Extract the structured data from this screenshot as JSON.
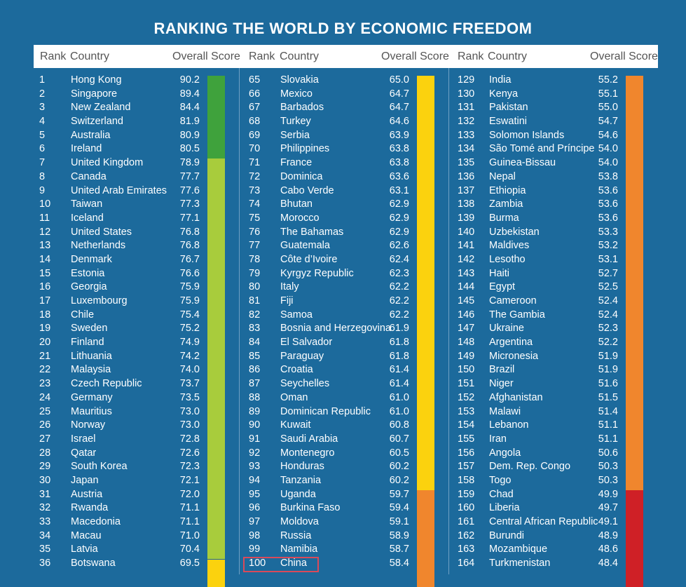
{
  "title": "RANKING THE WORLD BY ECONOMIC FREEDOM",
  "headers": {
    "rank": "Rank",
    "country": "Country",
    "score": "Overall Score"
  },
  "colors": {
    "green": "#3fa23c",
    "lightgreen": "#a8cc3c",
    "yellow": "#fbd20e",
    "orange": "#f0862d",
    "red": "#cf2026"
  },
  "highlight_rank": "100",
  "columns": [
    {
      "rows": [
        [
          "1",
          "Hong Kong",
          "90.2"
        ],
        [
          "2",
          "Singapore",
          "89.4"
        ],
        [
          "3",
          "New Zealand",
          "84.4"
        ],
        [
          "4",
          "Switzerland",
          "81.9"
        ],
        [
          "5",
          "Australia",
          "80.9"
        ],
        [
          "6",
          "Ireland",
          "80.5"
        ],
        [
          "7",
          "United Kingdom",
          "78.9"
        ],
        [
          "8",
          "Canada",
          "77.7"
        ],
        [
          "9",
          "United Arab Emirates",
          "77.6"
        ],
        [
          "10",
          "Taiwan",
          "77.3"
        ],
        [
          "11",
          "Iceland",
          "77.1"
        ],
        [
          "12",
          "United States",
          "76.8"
        ],
        [
          "13",
          "Netherlands",
          "76.8"
        ],
        [
          "14",
          "Denmark",
          "76.7"
        ],
        [
          "15",
          "Estonia",
          "76.6"
        ],
        [
          "16",
          "Georgia",
          "75.9"
        ],
        [
          "17",
          "Luxembourg",
          "75.9"
        ],
        [
          "18",
          "Chile",
          "75.4"
        ],
        [
          "19",
          "Sweden",
          "75.2"
        ],
        [
          "20",
          "Finland",
          "74.9"
        ],
        [
          "21",
          "Lithuania",
          "74.2"
        ],
        [
          "22",
          "Malaysia",
          "74.0"
        ],
        [
          "23",
          "Czech Republic",
          "73.7"
        ],
        [
          "24",
          "Germany",
          "73.5"
        ],
        [
          "25",
          "Mauritius",
          "73.0"
        ],
        [
          "26",
          "Norway",
          "73.0"
        ],
        [
          "27",
          "Israel",
          "72.8"
        ],
        [
          "28",
          "Qatar",
          "72.6"
        ],
        [
          "29",
          "South Korea",
          "72.3"
        ],
        [
          "30",
          "Japan",
          "72.1"
        ],
        [
          "31",
          "Austria",
          "72.0"
        ],
        [
          "32",
          "Rwanda",
          "71.1"
        ],
        [
          "33",
          "Macedonia",
          "71.1"
        ],
        [
          "34",
          "Macau",
          "71.0"
        ],
        [
          "35",
          "Latvia",
          "70.4"
        ],
        [
          "36",
          "Botswana",
          "69.5"
        ]
      ],
      "bands": [
        {
          "color": "green",
          "rows": 6
        },
        {
          "color": "lightgreen",
          "rows": 29
        },
        {
          "color": "yellow",
          "rows": 2
        }
      ]
    },
    {
      "rows": [
        [
          "65",
          "Slovakia",
          "65.0"
        ],
        [
          "66",
          "Mexico",
          "64.7"
        ],
        [
          "67",
          "Barbados",
          "64.7"
        ],
        [
          "68",
          "Turkey",
          "64.6"
        ],
        [
          "69",
          "Serbia",
          "63.9"
        ],
        [
          "70",
          "Philippines",
          "63.8"
        ],
        [
          "71",
          "France",
          "63.8"
        ],
        [
          "72",
          "Dominica",
          "63.6"
        ],
        [
          "73",
          "Cabo Verde",
          "63.1"
        ],
        [
          "74",
          "Bhutan",
          "62.9"
        ],
        [
          "75",
          "Morocco",
          "62.9"
        ],
        [
          "76",
          "The Bahamas",
          "62.9"
        ],
        [
          "77",
          "Guatemala",
          "62.6"
        ],
        [
          "78",
          "Côte d’Ivoire",
          "62.4"
        ],
        [
          "79",
          "Kyrgyz Republic",
          "62.3"
        ],
        [
          "80",
          "Italy",
          "62.2"
        ],
        [
          "81",
          "Fiji",
          "62.2"
        ],
        [
          "82",
          "Samoa",
          "62.2"
        ],
        [
          "83",
          "Bosnia and Herzegovina",
          "61.9"
        ],
        [
          "84",
          "El Salvador",
          "61.8"
        ],
        [
          "85",
          "Paraguay",
          "61.8"
        ],
        [
          "86",
          "Croatia",
          "61.4"
        ],
        [
          "87",
          "Seychelles",
          "61.4"
        ],
        [
          "88",
          "Oman",
          "61.0"
        ],
        [
          "89",
          "Dominican Republic",
          "61.0"
        ],
        [
          "90",
          "Kuwait",
          "60.8"
        ],
        [
          "91",
          "Saudi Arabia",
          "60.7"
        ],
        [
          "92",
          "Montenegro",
          "60.5"
        ],
        [
          "93",
          "Honduras",
          "60.2"
        ],
        [
          "94",
          "Tanzania",
          "60.2"
        ],
        [
          "95",
          "Uganda",
          "59.7"
        ],
        [
          "96",
          "Burkina Faso",
          "59.4"
        ],
        [
          "97",
          "Moldova",
          "59.1"
        ],
        [
          "98",
          "Russia",
          "58.9"
        ],
        [
          "99",
          "Namibia",
          "58.7"
        ],
        [
          "100",
          "China",
          "58.4"
        ]
      ],
      "bands": [
        {
          "color": "yellow",
          "rows": 30
        },
        {
          "color": "orange",
          "rows": 7
        }
      ]
    },
    {
      "rows": [
        [
          "129",
          "India",
          "55.2"
        ],
        [
          "130",
          "Kenya",
          "55.1"
        ],
        [
          "131",
          "Pakistan",
          "55.0"
        ],
        [
          "132",
          "Eswatini",
          "54.7"
        ],
        [
          "133",
          "Solomon Islands",
          "54.6"
        ],
        [
          "134",
          "São Tomé and Príncipe",
          "54.0"
        ],
        [
          "135",
          "Guinea-Bissau",
          "54.0"
        ],
        [
          "136",
          "Nepal",
          "53.8"
        ],
        [
          "137",
          "Ethiopia",
          "53.6"
        ],
        [
          "138",
          "Zambia",
          "53.6"
        ],
        [
          "139",
          "Burma",
          "53.6"
        ],
        [
          "140",
          "Uzbekistan",
          "53.3"
        ],
        [
          "141",
          "Maldives",
          "53.2"
        ],
        [
          "142",
          "Lesotho",
          "53.1"
        ],
        [
          "143",
          "Haiti",
          "52.7"
        ],
        [
          "144",
          "Egypt",
          "52.5"
        ],
        [
          "145",
          "Cameroon",
          "52.4"
        ],
        [
          "146",
          "The Gambia",
          "52.4"
        ],
        [
          "147",
          "Ukraine",
          "52.3"
        ],
        [
          "148",
          "Argentina",
          "52.2"
        ],
        [
          "149",
          "Micronesia",
          "51.9"
        ],
        [
          "150",
          "Brazil",
          "51.9"
        ],
        [
          "151",
          "Niger",
          "51.6"
        ],
        [
          "152",
          "Afghanistan",
          "51.5"
        ],
        [
          "153",
          "Malawi",
          "51.4"
        ],
        [
          "154",
          "Lebanon",
          "51.1"
        ],
        [
          "155",
          "Iran",
          "51.1"
        ],
        [
          "156",
          "Angola",
          "50.6"
        ],
        [
          "157",
          "Dem. Rep. Congo",
          "50.3"
        ],
        [
          "158",
          "Togo",
          "50.3"
        ],
        [
          "159",
          "Chad",
          "49.9"
        ],
        [
          "160",
          "Liberia",
          "49.7"
        ],
        [
          "161",
          "Central African Republic",
          "49.1"
        ],
        [
          "162",
          "Burundi",
          "48.9"
        ],
        [
          "163",
          "Mozambique",
          "48.6"
        ],
        [
          "164",
          "Turkmenistan",
          "48.4"
        ]
      ],
      "bands": [
        {
          "color": "orange",
          "rows": 30
        },
        {
          "color": "red",
          "rows": 7
        }
      ]
    }
  ]
}
